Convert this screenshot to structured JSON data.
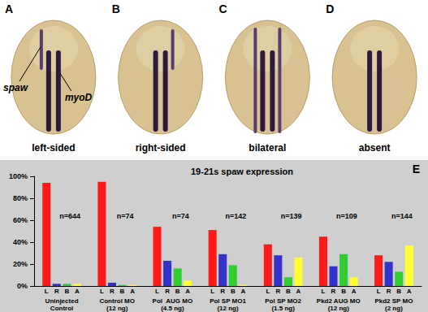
{
  "panels": [
    {
      "letter": "A",
      "caption": "left-sided",
      "spaw_domain": "left",
      "annotations": [
        "spaw",
        "myoD"
      ]
    },
    {
      "letter": "B",
      "caption": "right-sided",
      "spaw_domain": "right",
      "annotations": []
    },
    {
      "letter": "C",
      "caption": "bilateral",
      "spaw_domain": "bilateral",
      "annotations": []
    },
    {
      "letter": "D",
      "caption": "absent",
      "spaw_domain": "absent",
      "annotations": []
    }
  ],
  "chart_data": {
    "type": "bar",
    "panel_label": "E",
    "title": "19-21s spaw expression",
    "categories": [
      "Uninjected\nControl",
      "Control MO\n(12 ng)",
      "Pol  AUG MO\n(4.5 ng)",
      "Pol SP MO1\n(12 ng)",
      "Pol SP MO2\n(1.5 ng)",
      "Pkd2 AUG MO\n(12 ng)",
      "Pkd2 SP MO\n(2 ng)"
    ],
    "n_labels": [
      "n=644",
      "n=74",
      "n=74",
      "n=142",
      "n=139",
      "n=109",
      "n=144"
    ],
    "series": [
      {
        "name": "L",
        "color": "#ff1a1a",
        "values": [
          94,
          95,
          54,
          51,
          38,
          45,
          28
        ]
      },
      {
        "name": "R",
        "color": "#3333cc",
        "values": [
          2,
          3,
          23,
          29,
          28,
          18,
          22
        ]
      },
      {
        "name": "B",
        "color": "#33cc33",
        "values": [
          2,
          1,
          16,
          19,
          8,
          29,
          13
        ]
      },
      {
        "name": "A",
        "color": "#ffff33",
        "values": [
          2,
          1,
          5,
          1,
          26,
          8,
          37
        ]
      }
    ],
    "ylim": [
      0,
      100
    ],
    "yticks": [
      {
        "value": 0,
        "label": "0%"
      },
      {
        "value": 20,
        "label": "20%"
      },
      {
        "value": 40,
        "label": "40%"
      },
      {
        "value": 60,
        "label": "60%"
      },
      {
        "value": 80,
        "label": "80%"
      },
      {
        "value": 100,
        "label": "100%"
      }
    ],
    "grid": false
  }
}
